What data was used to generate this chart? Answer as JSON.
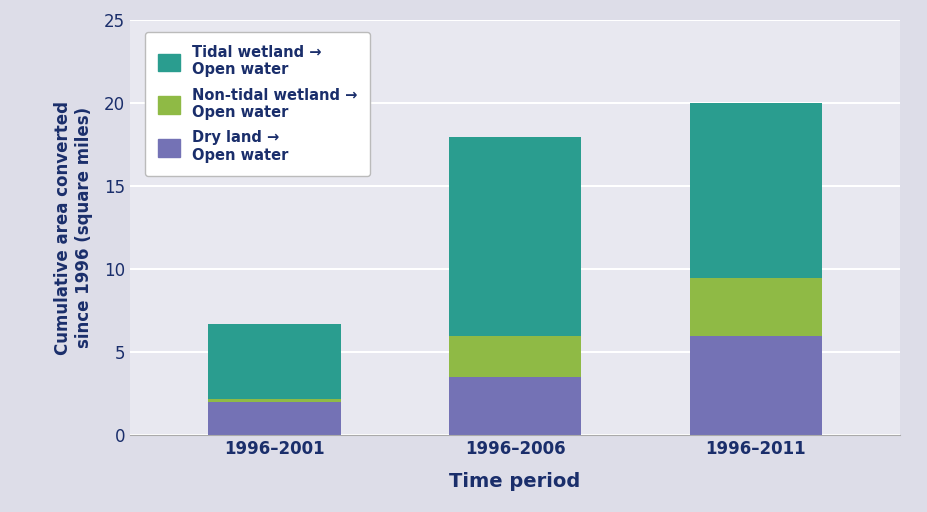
{
  "categories": [
    "1996–2001",
    "1996–2006",
    "1996–2011"
  ],
  "dry_land": [
    2.0,
    3.5,
    6.0
  ],
  "non_tidal": [
    0.2,
    2.5,
    3.5
  ],
  "tidal": [
    4.5,
    12.0,
    10.5
  ],
  "colors": {
    "tidal": "#2a9d8f",
    "non_tidal": "#8fba45",
    "dry_land": "#7472b5"
  },
  "ylabel": "Cumulative area converted\nsince 1996 (square miles)",
  "xlabel": "Time period",
  "ylim": [
    0,
    25
  ],
  "yticks": [
    0,
    5,
    10,
    15,
    20,
    25
  ],
  "outer_bg": "#dddde8",
  "plot_bg": "#e8e8f0",
  "legend_labels": {
    "tidal": "Tidal wetland →\nOpen water",
    "non_tidal": "Non-tidal wetland →\nOpen water",
    "dry_land": "Dry land →\nOpen water"
  },
  "bar_width": 0.55,
  "text_color": "#1a2e6b",
  "grid_color": "#ffffff",
  "ylabel_fontsize": 12,
  "xlabel_fontsize": 14,
  "tick_fontsize": 12,
  "legend_fontsize": 10.5
}
